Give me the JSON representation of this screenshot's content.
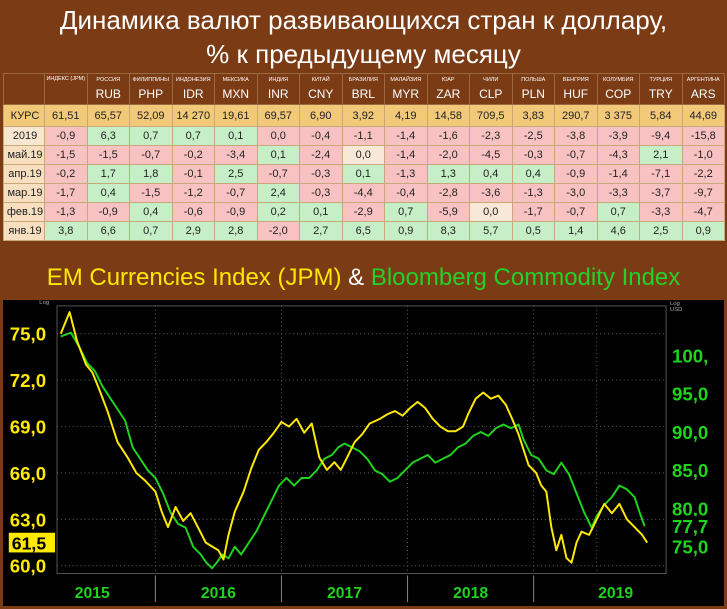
{
  "header": {
    "title_line1": "Динамика валют развивающихся стран к доллару,",
    "title_line2": "% к предыдущему месяцу"
  },
  "table": {
    "columns": [
      {
        "ru": "ИНДЕКС (JPM)",
        "code": ""
      },
      {
        "ru": "РОССИЯ",
        "code": "RUB"
      },
      {
        "ru": "ФИЛИППИНЫ",
        "code": "PHP"
      },
      {
        "ru": "ИНДОНЕЗИЯ",
        "code": "IDR"
      },
      {
        "ru": "МЕКСИКА",
        "code": "MXN"
      },
      {
        "ru": "ИНДИЯ",
        "code": "INR"
      },
      {
        "ru": "КИТАЙ",
        "code": "CNY"
      },
      {
        "ru": "БРАЗИЛИЯ",
        "code": "BRL"
      },
      {
        "ru": "МАЛАЙЗИЯ",
        "code": "MYR"
      },
      {
        "ru": "ЮАР",
        "code": "ZAR"
      },
      {
        "ru": "ЧИЛИ",
        "code": "CLP"
      },
      {
        "ru": "ПОЛЬША",
        "code": "PLN"
      },
      {
        "ru": "ВЕНГРИЯ",
        "code": "HUF"
      },
      {
        "ru": "КОЛУМБИЯ",
        "code": "COP"
      },
      {
        "ru": "ТУРЦИЯ",
        "code": "TRY"
      },
      {
        "ru": "АРГЕНТИНА",
        "code": "ARS"
      }
    ],
    "rows": [
      {
        "label": "КУРС",
        "values": [
          "61,51",
          "65,57",
          "52,09",
          "14 270",
          "19,61",
          "69,57",
          "6,90",
          "3,92",
          "4,19",
          "14,58",
          "709,5",
          "3,83",
          "290,7",
          "3 375",
          "5,84",
          "44,69"
        ]
      },
      {
        "label": "2019",
        "values": [
          "-0,9",
          "6,3",
          "0,7",
          "0,7",
          "0,1",
          "0,0",
          "-0,4",
          "-1,1",
          "-1,4",
          "-1,6",
          "-2,3",
          "-2,5",
          "-3,8",
          "-3,9",
          "-9,4",
          "-15,8"
        ]
      },
      {
        "label": "май.19",
        "values": [
          "-1,5",
          "-1,5",
          "-0,7",
          "-0,2",
          "-3,4",
          "0,1",
          "-2,4",
          "0,0",
          "-1,4",
          "-2,0",
          "-4,5",
          "-0,3",
          "-0,7",
          "-4,3",
          "2,1",
          "-1,0"
        ]
      },
      {
        "label": "апр.19",
        "values": [
          "-0,2",
          "1,7",
          "1,8",
          "-0,1",
          "2,5",
          "-0,7",
          "-0,3",
          "0,1",
          "-1,3",
          "1,3",
          "0,4",
          "0,4",
          "-0,9",
          "-1,4",
          "-7,1",
          "-2,2"
        ]
      },
      {
        "label": "мар.19",
        "values": [
          "-1,7",
          "0,4",
          "-1,5",
          "-1,2",
          "-0,7",
          "2,4",
          "-0,3",
          "-4,4",
          "-0,4",
          "-2,8",
          "-3,6",
          "-1,3",
          "-3,0",
          "-3,3",
          "-3,7",
          "-9,7"
        ]
      },
      {
        "label": "фев.19",
        "values": [
          "-1,3",
          "-0,9",
          "0,4",
          "-0,6",
          "-0,9",
          "0,2",
          "0,1",
          "-2,9",
          "0,7",
          "-5,9",
          "0,0",
          "-1,7",
          "-0,7",
          "0,7",
          "-3,3",
          "-4,7"
        ]
      },
      {
        "label": "янв.19",
        "values": [
          "3,8",
          "6,6",
          "0,7",
          "2,9",
          "2,8",
          "-2,0",
          "2,7",
          "6,5",
          "0,9",
          "8,3",
          "5,7",
          "0,5",
          "1,4",
          "4,6",
          "2,5",
          "0,9"
        ]
      }
    ]
  },
  "subtitle": {
    "part1": "EM Currencies Index (JPM)",
    "amp": "&",
    "part2": "Bloomberg Commodity Index"
  },
  "colors": {
    "em_series": "#ffea00",
    "commodity_series": "#1fd31f",
    "background": "#7b3b14"
  },
  "chart_data": {
    "type": "line",
    "title": "",
    "x_ticks": [
      "2015",
      "2016",
      "2017",
      "2018",
      "2019"
    ],
    "left_axis": {
      "label": "Log",
      "ticks": [
        "75,0",
        "72,0",
        "69,0",
        "66,0",
        "63,0",
        "60,0"
      ],
      "range": [
        59.5,
        76.8
      ],
      "last_value": "61,5"
    },
    "right_axis": {
      "label": "Log USD",
      "ticks": [
        "100,",
        "95,0",
        "90,0",
        "85,0",
        "80,0",
        "75,0"
      ],
      "range": [
        71.5,
        106.5
      ],
      "last_value": "77,7"
    },
    "series": [
      {
        "name": "EM Currencies Index (JPM)",
        "axis": "left",
        "points": [
          [
            2014.75,
            75.0
          ],
          [
            2014.82,
            76.4
          ],
          [
            2014.88,
            74.5
          ],
          [
            2014.95,
            73.0
          ],
          [
            2015.0,
            72.5
          ],
          [
            2015.05,
            71.5
          ],
          [
            2015.12,
            70.0
          ],
          [
            2015.2,
            68.0
          ],
          [
            2015.28,
            67.0
          ],
          [
            2015.35,
            66.0
          ],
          [
            2015.42,
            65.5
          ],
          [
            2015.5,
            64.8
          ],
          [
            2015.55,
            63.5
          ],
          [
            2015.6,
            62.5
          ],
          [
            2015.66,
            63.8
          ],
          [
            2015.72,
            62.9
          ],
          [
            2015.78,
            63.4
          ],
          [
            2015.85,
            62.3
          ],
          [
            2015.9,
            61.5
          ],
          [
            2015.96,
            61.2
          ],
          [
            2016.0,
            61.0
          ],
          [
            2016.04,
            60.4
          ],
          [
            2016.08,
            62.0
          ],
          [
            2016.13,
            63.5
          ],
          [
            2016.2,
            64.8
          ],
          [
            2016.26,
            66.3
          ],
          [
            2016.32,
            67.5
          ],
          [
            2016.38,
            68.0
          ],
          [
            2016.44,
            68.6
          ],
          [
            2016.5,
            69.3
          ],
          [
            2016.56,
            69.0
          ],
          [
            2016.62,
            69.5
          ],
          [
            2016.68,
            68.6
          ],
          [
            2016.74,
            69.2
          ],
          [
            2016.8,
            67.0
          ],
          [
            2016.86,
            66.2
          ],
          [
            2016.92,
            66.7
          ],
          [
            2016.97,
            66.2
          ],
          [
            2017.02,
            67.0
          ],
          [
            2017.08,
            68.0
          ],
          [
            2017.14,
            68.5
          ],
          [
            2017.2,
            69.2
          ],
          [
            2017.28,
            69.5
          ],
          [
            2017.34,
            69.8
          ],
          [
            2017.4,
            70.0
          ],
          [
            2017.46,
            69.7
          ],
          [
            2017.52,
            70.2
          ],
          [
            2017.58,
            70.6
          ],
          [
            2017.64,
            70.2
          ],
          [
            2017.7,
            69.5
          ],
          [
            2017.76,
            69.0
          ],
          [
            2017.82,
            68.7
          ],
          [
            2017.88,
            68.7
          ],
          [
            2017.94,
            69.0
          ],
          [
            2017.98,
            69.8
          ],
          [
            2018.04,
            70.8
          ],
          [
            2018.1,
            71.2
          ],
          [
            2018.16,
            70.8
          ],
          [
            2018.22,
            71.0
          ],
          [
            2018.28,
            70.4
          ],
          [
            2018.33,
            69.5
          ],
          [
            2018.38,
            68.5
          ],
          [
            2018.42,
            67.5
          ],
          [
            2018.46,
            66.5
          ],
          [
            2018.52,
            66.0
          ],
          [
            2018.56,
            65.2
          ],
          [
            2018.6,
            64.8
          ],
          [
            2018.64,
            62.5
          ],
          [
            2018.68,
            61.0
          ],
          [
            2018.72,
            62.0
          ],
          [
            2018.76,
            60.5
          ],
          [
            2018.8,
            60.2
          ],
          [
            2018.84,
            61.5
          ],
          [
            2018.88,
            62.2
          ],
          [
            2018.94,
            62.0
          ],
          [
            2019.0,
            63.0
          ],
          [
            2019.06,
            64.0
          ],
          [
            2019.12,
            63.4
          ],
          [
            2019.18,
            64.0
          ],
          [
            2019.24,
            63.0
          ],
          [
            2019.3,
            62.5
          ],
          [
            2019.36,
            62.0
          ],
          [
            2019.4,
            61.5
          ]
        ]
      },
      {
        "name": "Bloomberg Commodity Index",
        "axis": "right",
        "points": [
          [
            2014.75,
            102.5
          ],
          [
            2014.83,
            103.0
          ],
          [
            2014.9,
            101.0
          ],
          [
            2014.96,
            99.0
          ],
          [
            2015.02,
            98.0
          ],
          [
            2015.08,
            96.0
          ],
          [
            2015.14,
            94.5
          ],
          [
            2015.2,
            93.0
          ],
          [
            2015.26,
            91.5
          ],
          [
            2015.32,
            88.0
          ],
          [
            2015.38,
            86.5
          ],
          [
            2015.44,
            85.0
          ],
          [
            2015.5,
            84.0
          ],
          [
            2015.56,
            82.0
          ],
          [
            2015.62,
            79.5
          ],
          [
            2015.68,
            78.0
          ],
          [
            2015.74,
            77.5
          ],
          [
            2015.8,
            75.0
          ],
          [
            2015.86,
            74.0
          ],
          [
            2015.9,
            73.0
          ],
          [
            2015.95,
            72.2
          ],
          [
            2015.99,
            73.0
          ],
          [
            2016.03,
            74.0
          ],
          [
            2016.08,
            73.5
          ],
          [
            2016.13,
            75.0
          ],
          [
            2016.18,
            74.0
          ],
          [
            2016.24,
            75.5
          ],
          [
            2016.3,
            77.0
          ],
          [
            2016.36,
            79.0
          ],
          [
            2016.42,
            81.0
          ],
          [
            2016.48,
            83.0
          ],
          [
            2016.54,
            84.0
          ],
          [
            2016.6,
            83.0
          ],
          [
            2016.66,
            84.0
          ],
          [
            2016.72,
            84.0
          ],
          [
            2016.78,
            85.0
          ],
          [
            2016.84,
            86.5
          ],
          [
            2016.9,
            87.0
          ],
          [
            2016.95,
            88.0
          ],
          [
            2017.0,
            88.5
          ],
          [
            2017.06,
            88.0
          ],
          [
            2017.12,
            87.5
          ],
          [
            2017.18,
            86.5
          ],
          [
            2017.24,
            85.0
          ],
          [
            2017.3,
            84.5
          ],
          [
            2017.36,
            83.5
          ],
          [
            2017.42,
            84.0
          ],
          [
            2017.48,
            85.0
          ],
          [
            2017.54,
            86.0
          ],
          [
            2017.6,
            86.5
          ],
          [
            2017.66,
            87.0
          ],
          [
            2017.72,
            86.0
          ],
          [
            2017.78,
            86.5
          ],
          [
            2017.84,
            87.0
          ],
          [
            2017.9,
            88.0
          ],
          [
            2017.96,
            88.5
          ],
          [
            2018.02,
            89.5
          ],
          [
            2018.08,
            90.0
          ],
          [
            2018.14,
            89.5
          ],
          [
            2018.2,
            90.5
          ],
          [
            2018.26,
            91.0
          ],
          [
            2018.32,
            90.5
          ],
          [
            2018.38,
            91.0
          ],
          [
            2018.42,
            89.0
          ],
          [
            2018.48,
            87.0
          ],
          [
            2018.54,
            86.5
          ],
          [
            2018.6,
            85.0
          ],
          [
            2018.66,
            84.5
          ],
          [
            2018.72,
            86.0
          ],
          [
            2018.78,
            84.5
          ],
          [
            2018.84,
            82.0
          ],
          [
            2018.9,
            79.5
          ],
          [
            2018.96,
            77.5
          ],
          [
            2019.0,
            79.0
          ],
          [
            2019.06,
            80.5
          ],
          [
            2019.12,
            81.5
          ],
          [
            2019.18,
            83.0
          ],
          [
            2019.24,
            82.5
          ],
          [
            2019.3,
            81.5
          ],
          [
            2019.34,
            79.5
          ],
          [
            2019.38,
            77.7
          ]
        ]
      }
    ]
  }
}
